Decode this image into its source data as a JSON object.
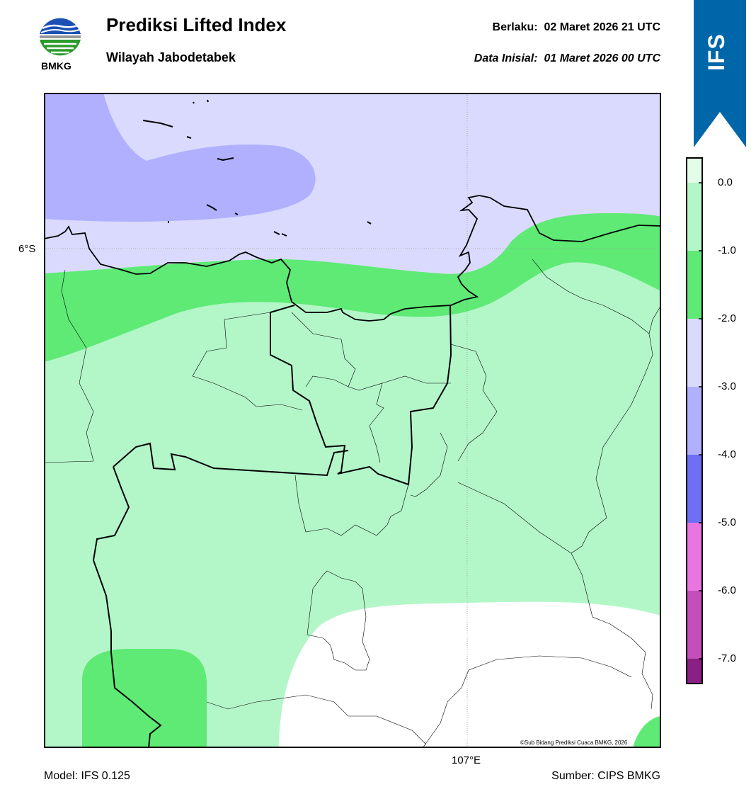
{
  "header": {
    "title": "Prediksi Lifted Index",
    "subtitle": "Wilayah Jabodetabek",
    "valid_text": "Berlaku:  02 Maret 2026 21 UTC",
    "init_text": "Data Inisial:  01 Maret 2026 00 UTC",
    "logo_text": "BMKG"
  },
  "ribbon": {
    "label": "IFS",
    "color": "#0066aa"
  },
  "map": {
    "lat_label": "6°S",
    "lon_label": "107°E",
    "copyright": "©Sub Bidang Prediksi Cuaca BMKG, 2026",
    "colors": {
      "level_0_to_-1": "#b3f7c9",
      "level_-1_to_-2": "#5eea75",
      "level_-2_to_-3": "#dadaff",
      "level_-3_to_-4": "#b0b0ff",
      "above_0": "#ffffff"
    }
  },
  "colorbar": {
    "ticks": [
      "0.0",
      "-1.0",
      "-2.0",
      "-3.0",
      "-4.0",
      "-5.0",
      "-6.0",
      "-7.0"
    ],
    "colors": [
      "#e3fde9",
      "#b3f7c9",
      "#5eea75",
      "#dadaff",
      "#b0b0ff",
      "#6f6ff5",
      "#e875e0",
      "#c44fba",
      "#8a1f84"
    ]
  },
  "footer": {
    "model": "Model: IFS 0.125",
    "source": "Sumber: CIPS BMKG"
  }
}
